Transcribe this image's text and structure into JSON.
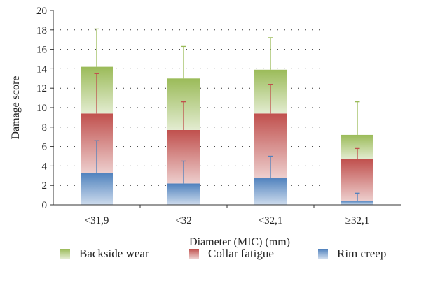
{
  "chart_data": {
    "type": "bar",
    "stacked": true,
    "categories": [
      "<31,9",
      "<32",
      "<32,1",
      "≥32,1"
    ],
    "xlabel": "Diameter (MIC) (mm)",
    "ylabel": "Damage score",
    "ylim": [
      0,
      20
    ],
    "yticks": [
      "0",
      "2",
      "4",
      "6",
      "8",
      "10",
      "12",
      "14",
      "16",
      "18",
      "20"
    ],
    "grid": "dotted horizontal",
    "legend_position": "bottom",
    "series": [
      {
        "name": "Rim creep",
        "values": [
          3.3,
          2.2,
          2.8,
          0.4
        ],
        "error_top": [
          6.6,
          4.5,
          5.0,
          1.2
        ],
        "color": "#4f81bd"
      },
      {
        "name": "Collar fatigue",
        "values": [
          6.1,
          5.5,
          6.6,
          4.3
        ],
        "error_top": [
          13.5,
          10.6,
          12.4,
          5.8
        ],
        "color": "#c0504d"
      },
      {
        "name": "Backside wear",
        "values": [
          4.8,
          5.3,
          4.5,
          2.5
        ],
        "error_top": [
          18.1,
          16.3,
          17.2,
          10.6
        ],
        "color": "#9bbb59"
      }
    ]
  },
  "legend": [
    {
      "label": "Backside wear",
      "color": "#9bbb59"
    },
    {
      "label": "Collar fatigue",
      "color": "#c0504d"
    },
    {
      "label": "Rim creep",
      "color": "#4f81bd"
    }
  ]
}
